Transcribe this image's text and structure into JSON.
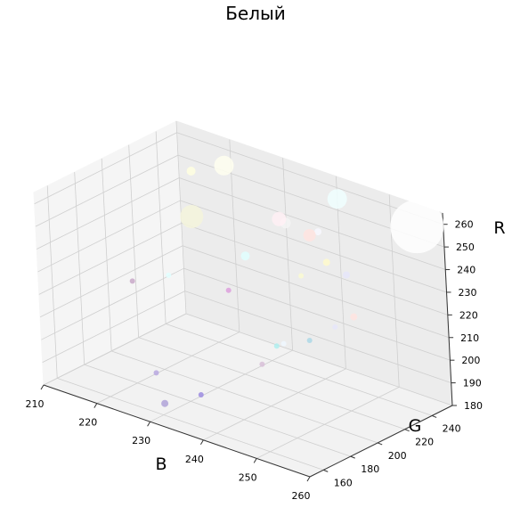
{
  "chart_data": {
    "type": "scatter",
    "title": "Белый",
    "xlabel": "B",
    "ylabel": "G",
    "zlabel": "R",
    "xlim": [
      210,
      260
    ],
    "ylim": [
      150,
      255
    ],
    "zlim": [
      180,
      265
    ],
    "x_ticks": [
      "210",
      "220",
      "230",
      "240",
      "250",
      "260"
    ],
    "y_ticks": [
      "160",
      "180",
      "200",
      "220",
      "240"
    ],
    "z_ticks": [
      "180",
      "190",
      "200",
      "210",
      "220",
      "230",
      "240",
      "250",
      "260"
    ],
    "grid": true,
    "points": [
      {
        "x": 255,
        "y": 255,
        "z": 255,
        "size": 30,
        "color": "#ffffff"
      },
      {
        "x": 240,
        "y": 255,
        "z": 255,
        "size": 11,
        "color": "#f0ffff"
      },
      {
        "x": 220,
        "y": 250,
        "z": 255,
        "size": 11,
        "color": "#fffff0"
      },
      {
        "x": 215,
        "y": 245,
        "z": 250,
        "size": 5,
        "color": "#ffffe0"
      },
      {
        "x": 238,
        "y": 220,
        "z": 255,
        "size": 8,
        "color": "#fff0f5"
      },
      {
        "x": 245,
        "y": 215,
        "z": 255,
        "size": 7,
        "color": "#ffe4e1"
      },
      {
        "x": 236,
        "y": 232,
        "z": 248,
        "size": 6,
        "color": "#f5f5f5"
      },
      {
        "x": 240,
        "y": 240,
        "z": 245,
        "size": 4,
        "color": "#f8f8ff"
      },
      {
        "x": 245,
        "y": 240,
        "z": 230,
        "size": 4,
        "color": "#e6e6fa"
      },
      {
        "x": 228,
        "y": 232,
        "z": 227,
        "size": 5,
        "color": "#e0ffff"
      },
      {
        "x": 240,
        "y": 245,
        "z": 230,
        "size": 4,
        "color": "#fffacd"
      },
      {
        "x": 220,
        "y": 225,
        "z": 240,
        "size": 13,
        "color": "#f5f5dc"
      },
      {
        "x": 235,
        "y": 245,
        "z": 220,
        "size": 3,
        "color": "#fafad2"
      },
      {
        "x": 250,
        "y": 225,
        "z": 220,
        "size": 4,
        "color": "#ffe4e1"
      },
      {
        "x": 245,
        "y": 230,
        "z": 210,
        "size": 3,
        "color": "#e6e6fa"
      },
      {
        "x": 240,
        "y": 230,
        "z": 200,
        "size": 3,
        "color": "#add8e6"
      },
      {
        "x": 235,
        "y": 225,
        "z": 195,
        "size": 3,
        "color": "#afeeee"
      },
      {
        "x": 225,
        "y": 230,
        "z": 210,
        "size": 3,
        "color": "#dda0dd"
      },
      {
        "x": 215,
        "y": 225,
        "z": 210,
        "size": 3,
        "color": "#e0ffff"
      },
      {
        "x": 243,
        "y": 200,
        "z": 210,
        "size": 3,
        "color": "#f0f8ff"
      },
      {
        "x": 240,
        "y": 195,
        "z": 200,
        "size": 3,
        "color": "#d8bfd8"
      },
      {
        "x": 225,
        "y": 180,
        "z": 175,
        "size": 4,
        "color": "#b0a3d8"
      },
      {
        "x": 225,
        "y": 175,
        "z": 190,
        "size": 3,
        "color": "#b8a8e0"
      },
      {
        "x": 220,
        "y": 180,
        "z": 225,
        "size": 3,
        "color": "#c8a8c8"
      },
      {
        "x": 240,
        "y": 150,
        "z": 200,
        "size": 3,
        "color": "#9c8ce0"
      }
    ]
  }
}
